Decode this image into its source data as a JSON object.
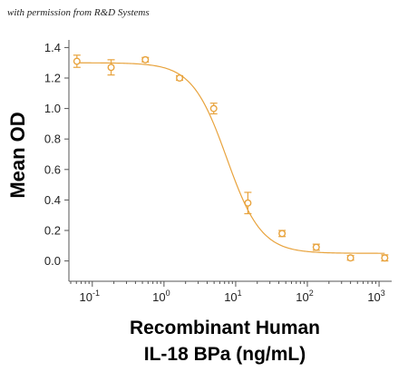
{
  "credit": "with permission from R&D Systems",
  "chart_data": {
    "type": "scatter",
    "x_scale": "log",
    "xlim": [
      0.05,
      1500
    ],
    "ylim": [
      -0.05,
      1.45
    ],
    "ylabel": "Mean OD",
    "xlabel_line1": "Recombinant Human",
    "xlabel_line2": "IL-18 BPa (ng/mL)",
    "color": "#e8a33d",
    "x_ticks": [
      {
        "base": "10",
        "exp": "-1",
        "value": 0.1
      },
      {
        "base": "10",
        "exp": "0",
        "value": 1
      },
      {
        "base": "10",
        "exp": "1",
        "value": 10
      },
      {
        "base": "10",
        "exp": "2",
        "value": 100
      },
      {
        "base": "10",
        "exp": "3",
        "value": 1000
      }
    ],
    "y_ticks": [
      "0.0",
      "0.2",
      "0.4",
      "0.6",
      "0.8",
      "1.0",
      "1.2",
      "1.4"
    ],
    "y_tick_values": [
      0,
      0.2,
      0.4,
      0.6,
      0.8,
      1.0,
      1.2,
      1.4
    ],
    "points": [
      {
        "x": 0.061,
        "y": 1.31,
        "err": 0.04
      },
      {
        "x": 0.183,
        "y": 1.27,
        "err": 0.05
      },
      {
        "x": 0.549,
        "y": 1.32,
        "err": 0.015
      },
      {
        "x": 1.65,
        "y": 1.2,
        "err": 0.015
      },
      {
        "x": 4.94,
        "y": 1.0,
        "err": 0.035
      },
      {
        "x": 14.8,
        "y": 0.38,
        "err": 0.07
      },
      {
        "x": 44.4,
        "y": 0.18,
        "err": 0.02
      },
      {
        "x": 133,
        "y": 0.09,
        "err": 0.02
      },
      {
        "x": 400,
        "y": 0.02,
        "err": 0.015
      },
      {
        "x": 1200,
        "y": 0.02,
        "err": 0.02
      }
    ],
    "fit": {
      "top": 1.3,
      "bottom": 0.05,
      "ec50": 7.5,
      "hill": 1.8
    }
  }
}
